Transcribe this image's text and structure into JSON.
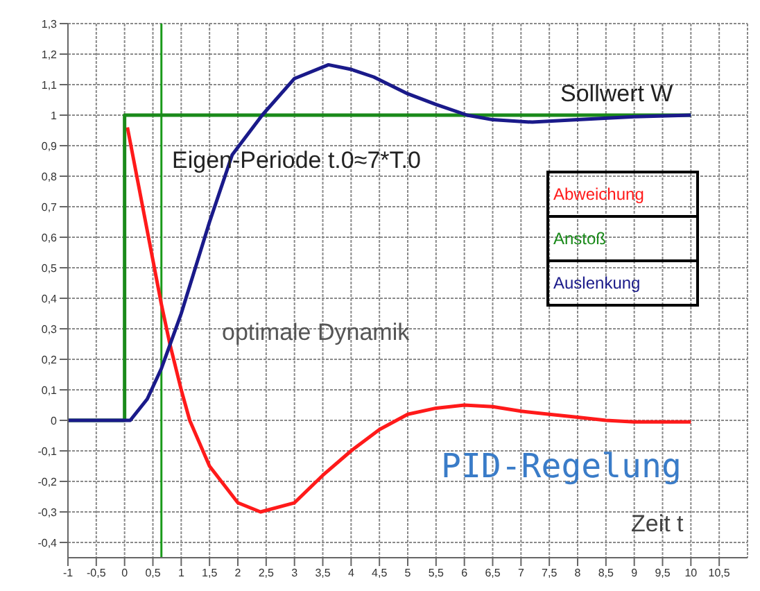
{
  "chart_data": {
    "type": "line",
    "xlabel": "Zeit t",
    "xlim": [
      -1,
      11
    ],
    "ylim": [
      -0.45,
      1.3
    ],
    "xticks": [
      {
        "value": -1,
        "label": "-1"
      },
      {
        "value": -0.5,
        "label": "-0,5"
      },
      {
        "value": 0,
        "label": "0"
      },
      {
        "value": 0.5,
        "label": "0,5"
      },
      {
        "value": 1,
        "label": "1"
      },
      {
        "value": 1.5,
        "label": "1,5"
      },
      {
        "value": 2,
        "label": "2"
      },
      {
        "value": 2.5,
        "label": "2,5"
      },
      {
        "value": 3,
        "label": "3"
      },
      {
        "value": 3.5,
        "label": "3,5"
      },
      {
        "value": 4,
        "label": "4"
      },
      {
        "value": 4.5,
        "label": "4,5"
      },
      {
        "value": 5,
        "label": "5"
      },
      {
        "value": 5.5,
        "label": "5,5"
      },
      {
        "value": 6,
        "label": "6"
      },
      {
        "value": 6.5,
        "label": "6,5"
      },
      {
        "value": 7,
        "label": "7"
      },
      {
        "value": 7.5,
        "label": "7,5"
      },
      {
        "value": 8,
        "label": "8"
      },
      {
        "value": 8.5,
        "label": "8,5"
      },
      {
        "value": 9,
        "label": "9"
      },
      {
        "value": 9.5,
        "label": "9,5"
      },
      {
        "value": 10,
        "label": "10"
      },
      {
        "value": 10.5,
        "label": "10,5"
      }
    ],
    "yticks": [
      {
        "value": -0.4,
        "label": "-0,4"
      },
      {
        "value": -0.3,
        "label": "-0,3"
      },
      {
        "value": -0.2,
        "label": "-0,2"
      },
      {
        "value": -0.1,
        "label": "-0,1"
      },
      0,
      {
        "value": 0.1,
        "label": "0,1"
      },
      {
        "value": 0.2,
        "label": "0,2"
      },
      {
        "value": 0.3,
        "label": "0,3"
      },
      {
        "value": 0.4,
        "label": "0,4"
      },
      {
        "value": 0.5,
        "label": "0,5"
      },
      {
        "value": 0.6,
        "label": "0,6"
      },
      {
        "value": 0.7,
        "label": "0,7"
      },
      {
        "value": 0.8,
        "label": "0,8"
      },
      {
        "value": 0.9,
        "label": "0,9"
      },
      1,
      {
        "value": 1.1,
        "label": "1,1"
      },
      {
        "value": 1.2,
        "label": "1,2"
      },
      {
        "value": 1.3,
        "label": "1,3"
      }
    ],
    "grid": true,
    "legend": "right",
    "marker": "none",
    "line_style": "solid",
    "series": [
      {
        "name": "Abweichung",
        "color": "#ff1a1a",
        "x": [
          0.05,
          0.65,
          0.8,
          1,
          1.15,
          1.5,
          2,
          2.4,
          3,
          3.5,
          4,
          4.5,
          5,
          5.5,
          6,
          6.5,
          7,
          7.5,
          8,
          8.5,
          9,
          9.5,
          10
        ],
        "values": [
          0.96,
          0.38,
          0.25,
          0.1,
          0,
          -0.15,
          -0.27,
          -0.3,
          -0.27,
          -0.18,
          -0.1,
          -0.03,
          0.02,
          0.04,
          0.05,
          0.045,
          0.03,
          0.02,
          0.01,
          0,
          -0.005,
          -0.005,
          -0.005
        ]
      },
      {
        "name": "Anstoß",
        "color": "#1a8a1a",
        "x": [
          -1,
          0,
          0,
          10
        ],
        "values": [
          0,
          0,
          1,
          1
        ]
      },
      {
        "name": "Auslenkung",
        "color": "#1a1a8a",
        "x": [
          -1,
          0.1,
          0.4,
          0.65,
          1,
          1.5,
          1.9,
          2.43,
          3,
          3.6,
          4,
          4.4,
          5,
          5.5,
          6.05,
          6.5,
          7.2,
          8,
          9,
          10
        ],
        "values": [
          0,
          0,
          0.07,
          0.17,
          0.35,
          0.65,
          0.87,
          1,
          1.12,
          1.165,
          1.15,
          1.125,
          1.07,
          1.035,
          1,
          0.985,
          0.977,
          0.985,
          0.995,
          1
        ]
      }
    ],
    "ref_lines": [
      {
        "axis": "x",
        "value": 0.65,
        "color": "#1a9a1a"
      }
    ],
    "annotations": [
      "Sollwert W",
      "Eigen-Periode t.0≈7*T.0",
      "optimale Dynamik",
      "PID-Regelung"
    ]
  }
}
